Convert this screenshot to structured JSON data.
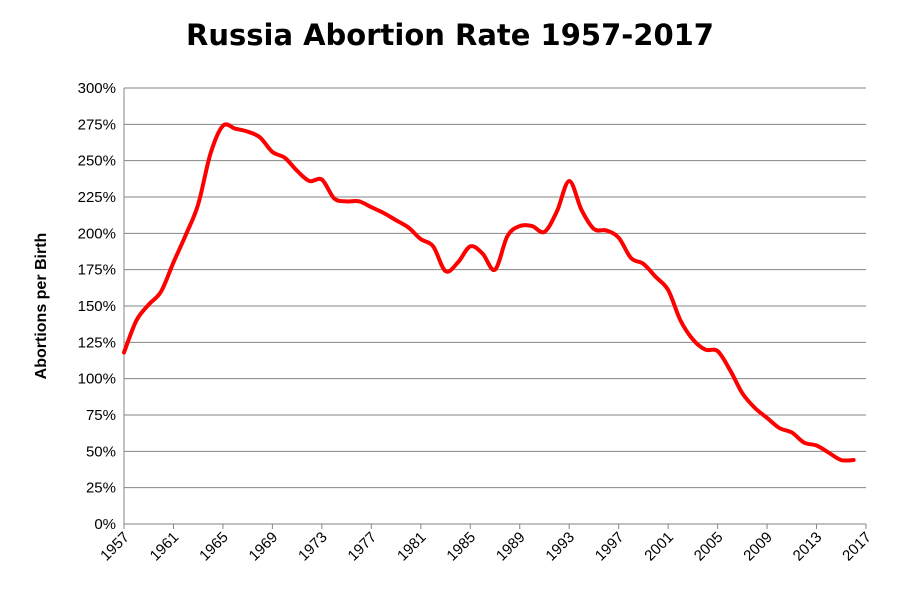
{
  "chart_data": {
    "type": "line",
    "title": "Russia Abortion Rate 1957-2017",
    "xlabel": "",
    "ylabel": "Abortions per Birth",
    "xlim": [
      1957,
      2017
    ],
    "ylim": [
      0,
      300
    ],
    "y_unit": "%",
    "y_ticks": [
      0,
      25,
      50,
      75,
      100,
      125,
      150,
      175,
      200,
      225,
      250,
      275,
      300
    ],
    "y_tick_labels": [
      "0%",
      "25%",
      "50%",
      "75%",
      "100%",
      "125%",
      "150%",
      "175%",
      "200%",
      "225%",
      "250%",
      "275%",
      "300%"
    ],
    "x_tick_labels": [
      "1957",
      "1961",
      "1965",
      "1969",
      "1973",
      "1977",
      "1981",
      "1985",
      "1989",
      "1993",
      "1997",
      "2001",
      "2005",
      "2009",
      "2013",
      "2017"
    ],
    "grid": true,
    "legend": "none",
    "series": [
      {
        "color": "#ff0000",
        "x": [
          1957,
          1958,
          1959,
          1960,
          1961,
          1962,
          1963,
          1964,
          1965,
          1966,
          1967,
          1968,
          1969,
          1970,
          1971,
          1972,
          1973,
          1974,
          1975,
          1976,
          1977,
          1978,
          1979,
          1980,
          1981,
          1982,
          1983,
          1984,
          1985,
          1986,
          1987,
          1988,
          1989,
          1990,
          1991,
          1992,
          1993,
          1994,
          1995,
          1996,
          1997,
          1998,
          1999,
          2000,
          2001,
          2002,
          2003,
          2004,
          2005,
          2006,
          2007,
          2008,
          2009,
          2010,
          2011,
          2012,
          2013,
          2014,
          2015,
          2016
        ],
        "y": [
          118,
          140,
          151,
          160,
          180,
          199,
          220,
          255,
          274,
          272,
          270,
          266,
          256,
          252,
          243,
          236,
          237,
          224,
          222,
          222,
          218,
          214,
          209,
          204,
          196,
          191,
          174,
          180,
          191,
          186,
          175,
          198,
          205,
          205,
          201,
          215,
          236,
          216,
          203,
          202,
          197,
          183,
          179,
          170,
          161,
          140,
          127,
          120,
          119,
          106,
          90,
          80,
          73,
          66,
          63,
          56,
          54,
          49,
          44,
          44
        ]
      }
    ]
  }
}
